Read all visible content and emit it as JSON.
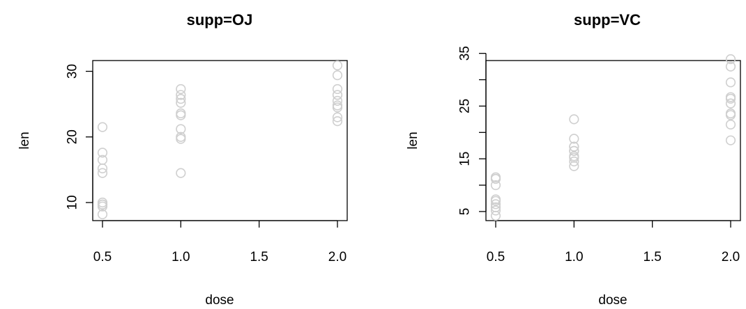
{
  "chart_data": [
    {
      "type": "scatter",
      "title": "supp=OJ",
      "xlabel": "dose",
      "ylabel": "len",
      "xlim": [
        0.5,
        2.0
      ],
      "ylim": [
        8.2,
        30.9
      ],
      "xticks": [
        0.5,
        1.0,
        1.5,
        2.0
      ],
      "xtick_labels": [
        "0.5",
        "1.0",
        "1.5",
        "2.0"
      ],
      "yticks": [
        10,
        20,
        30
      ],
      "ytick_labels": [
        "10",
        "20",
        "30"
      ],
      "point_color": "#cfcfcf",
      "grid": false,
      "points": [
        {
          "x": 0.5,
          "y": 15.2
        },
        {
          "x": 0.5,
          "y": 21.5
        },
        {
          "x": 0.5,
          "y": 17.6
        },
        {
          "x": 0.5,
          "y": 9.7
        },
        {
          "x": 0.5,
          "y": 14.5
        },
        {
          "x": 0.5,
          "y": 10.0
        },
        {
          "x": 0.5,
          "y": 8.2
        },
        {
          "x": 0.5,
          "y": 9.4
        },
        {
          "x": 0.5,
          "y": 16.5
        },
        {
          "x": 0.5,
          "y": 9.7
        },
        {
          "x": 1.0,
          "y": 19.7
        },
        {
          "x": 1.0,
          "y": 23.3
        },
        {
          "x": 1.0,
          "y": 23.6
        },
        {
          "x": 1.0,
          "y": 26.4
        },
        {
          "x": 1.0,
          "y": 20.0
        },
        {
          "x": 1.0,
          "y": 25.2
        },
        {
          "x": 1.0,
          "y": 25.8
        },
        {
          "x": 1.0,
          "y": 21.2
        },
        {
          "x": 1.0,
          "y": 14.5
        },
        {
          "x": 1.0,
          "y": 27.3
        },
        {
          "x": 2.0,
          "y": 25.5
        },
        {
          "x": 2.0,
          "y": 26.4
        },
        {
          "x": 2.0,
          "y": 22.4
        },
        {
          "x": 2.0,
          "y": 24.5
        },
        {
          "x": 2.0,
          "y": 24.8
        },
        {
          "x": 2.0,
          "y": 30.9
        },
        {
          "x": 2.0,
          "y": 26.4
        },
        {
          "x": 2.0,
          "y": 27.3
        },
        {
          "x": 2.0,
          "y": 29.4
        },
        {
          "x": 2.0,
          "y": 23.0
        }
      ]
    },
    {
      "type": "scatter",
      "title": "supp=VC",
      "xlabel": "dose",
      "ylabel": "len",
      "xlim": [
        0.5,
        2.0
      ],
      "ylim": [
        4.2,
        33.9
      ],
      "xticks": [
        0.5,
        1.0,
        1.5,
        2.0
      ],
      "xtick_labels": [
        "0.5",
        "1.0",
        "1.5",
        "2.0"
      ],
      "yticks": [
        5,
        10,
        15,
        20,
        25,
        30,
        35
      ],
      "ytick_labels": [
        "5",
        "",
        "15",
        "",
        "25",
        "",
        "35"
      ],
      "point_color": "#cfcfcf",
      "grid": false,
      "points": [
        {
          "x": 0.5,
          "y": 4.2
        },
        {
          "x": 0.5,
          "y": 11.5
        },
        {
          "x": 0.5,
          "y": 7.3
        },
        {
          "x": 0.5,
          "y": 5.8
        },
        {
          "x": 0.5,
          "y": 6.4
        },
        {
          "x": 0.5,
          "y": 10.0
        },
        {
          "x": 0.5,
          "y": 11.2
        },
        {
          "x": 0.5,
          "y": 11.2
        },
        {
          "x": 0.5,
          "y": 5.2
        },
        {
          "x": 0.5,
          "y": 7.0
        },
        {
          "x": 1.0,
          "y": 16.5
        },
        {
          "x": 1.0,
          "y": 16.5
        },
        {
          "x": 1.0,
          "y": 15.2
        },
        {
          "x": 1.0,
          "y": 17.3
        },
        {
          "x": 1.0,
          "y": 22.5
        },
        {
          "x": 1.0,
          "y": 17.3
        },
        {
          "x": 1.0,
          "y": 13.6
        },
        {
          "x": 1.0,
          "y": 14.5
        },
        {
          "x": 1.0,
          "y": 18.8
        },
        {
          "x": 1.0,
          "y": 15.5
        },
        {
          "x": 2.0,
          "y": 23.6
        },
        {
          "x": 2.0,
          "y": 18.5
        },
        {
          "x": 2.0,
          "y": 33.9
        },
        {
          "x": 2.0,
          "y": 25.5
        },
        {
          "x": 2.0,
          "y": 26.4
        },
        {
          "x": 2.0,
          "y": 32.5
        },
        {
          "x": 2.0,
          "y": 26.7
        },
        {
          "x": 2.0,
          "y": 21.5
        },
        {
          "x": 2.0,
          "y": 23.3
        },
        {
          "x": 2.0,
          "y": 29.5
        }
      ]
    }
  ]
}
